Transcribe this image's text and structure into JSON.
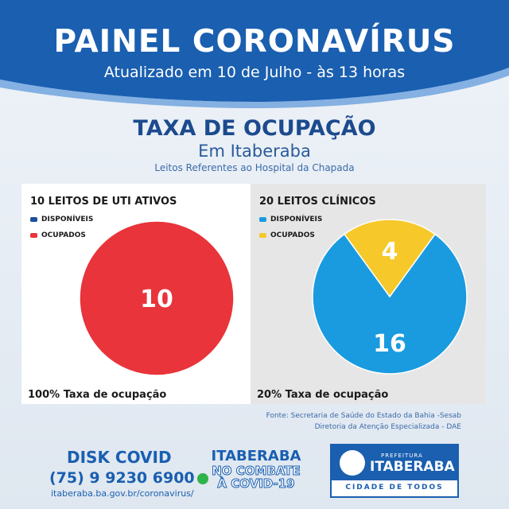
{
  "header": {
    "title": "PAINEL CORONAVÍRUS",
    "subtitle": "Atualizado em 10 de Julho - às 13 horas"
  },
  "section": {
    "title": "TAXA DE OCUPAÇÃO",
    "city": "Em Itaberaba",
    "note": "Leitos Referentes ao Hospital da Chapada"
  },
  "colors": {
    "disponiveis_left": "#1c4fa0",
    "disponiveis_right": "#1a9be0",
    "ocupados_left": "#e8343a",
    "ocupados_right": "#f6c82a",
    "brand": "#1a5fb0"
  },
  "chart_data": [
    {
      "type": "pie",
      "title": "10 LEITOS DE UTI ATIVOS",
      "legend": [
        "DISPONÍVEIS",
        "OCUPADOS"
      ],
      "values": [
        0,
        10
      ],
      "data_labels": [
        "",
        "10"
      ],
      "footer": "100% Taxa de ocupação"
    },
    {
      "type": "pie",
      "title": "20 LEITOS CLÍNICOS",
      "legend": [
        "DISPONÍVEIS",
        "OCUPADOS"
      ],
      "values": [
        16,
        4
      ],
      "data_labels": [
        "16",
        "4"
      ],
      "footer": "20% Taxa de ocupação"
    }
  ],
  "source": {
    "line1": "Fonte: Secretaria de Saúde do Estado da Bahia -Sesab",
    "line2": "Diretoria da Atenção Especializada - DAE"
  },
  "footer": {
    "disk": "DISK COVID",
    "phone": "(75) 9 9230 6900",
    "url": "itaberaba.ba.gov.br/coronavirus/",
    "campaign_city": "ITABERABA",
    "campaign_line1": "NO COMBATE",
    "campaign_line2": "À COVID-19",
    "logo_prefeitura": "PREFEITURA",
    "logo_city": "ITABERABA",
    "logo_slogan": "CIDADE DE TODOS"
  }
}
